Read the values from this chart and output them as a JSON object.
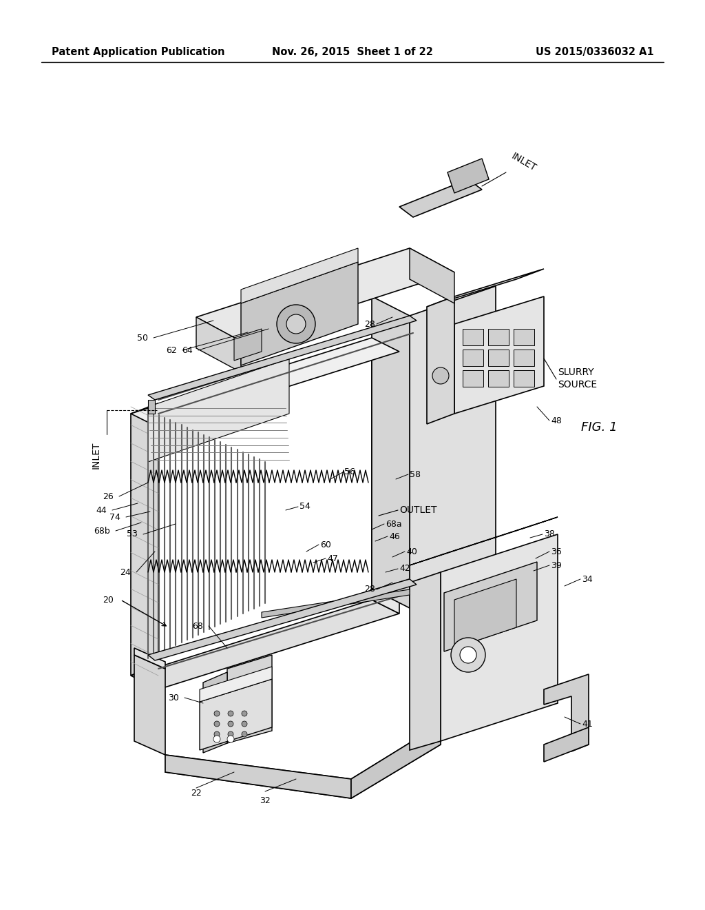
{
  "bg_color": "#ffffff",
  "header_left": "Patent Application Publication",
  "header_center": "Nov. 26, 2015  Sheet 1 of 22",
  "header_right": "US 2015/0336032 A1",
  "fig_label": "FIG. 1",
  "header_fontsize": 10.5,
  "label_fontsize": 9,
  "fig_label_fontsize": 13
}
